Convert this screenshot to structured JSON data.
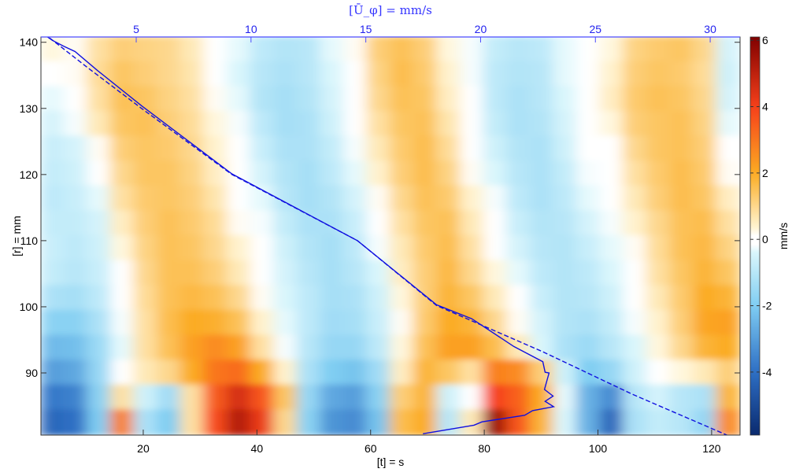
{
  "chart_data": {
    "type": "heatmap",
    "title": "",
    "xlabel": "[t] = s",
    "ylabel": "[r] = mm",
    "top_xlabel": "[Ū_φ] = mm/s",
    "colorbar_label": "mm/s",
    "xlim": [
      2,
      125
    ],
    "ylim": [
      80.6,
      140.8
    ],
    "top_xlim": [
      0.85,
      31.3
    ],
    "clim": [
      -5.9,
      6.1
    ],
    "x_ticks": [
      20,
      40,
      60,
      80,
      100,
      120
    ],
    "y_ticks": [
      90,
      100,
      110,
      120,
      130,
      140
    ],
    "top_x_ticks": [
      5,
      10,
      15,
      20,
      25,
      30
    ],
    "colorbar_ticks": [
      -4,
      -2,
      0,
      2,
      4,
      6
    ],
    "grid": false,
    "colormap": [
      {
        "v": -5.9,
        "c": "#0a2a6e"
      },
      {
        "v": -4,
        "c": "#2e6fc4"
      },
      {
        "v": -2,
        "c": "#7fcdf2"
      },
      {
        "v": -0.35,
        "c": "#dcf7fc"
      },
      {
        "v": -0.15,
        "c": "#ffffff"
      },
      {
        "v": 0.15,
        "c": "#ffffff"
      },
      {
        "v": 0.35,
        "c": "#fff4d2"
      },
      {
        "v": 2,
        "c": "#fbab22"
      },
      {
        "v": 4,
        "c": "#f6401a"
      },
      {
        "v": 6.1,
        "c": "#800000"
      }
    ],
    "grid_rows_note_r_from_top": true,
    "z": [
      [
        0.3,
        0.2,
        0.8,
        1.2,
        1.1,
        1.0,
        0.6,
        0,
        -0.3,
        -0.9,
        -1.1,
        -1.0,
        -0.3,
        0.2,
        1.2,
        1.5,
        1.2,
        0.3,
        -0.2,
        -0.8,
        -1.0,
        -0.9,
        -0.3,
        0.1,
        0.3,
        1.1,
        1.3,
        1.4,
        1.0,
        -0.5
      ],
      [
        0.1,
        0.2,
        0.9,
        1.4,
        1.2,
        1.0,
        0.7,
        0.1,
        -0.4,
        -1.0,
        -1.2,
        -1.0,
        -0.4,
        0.1,
        1.1,
        1.6,
        1.3,
        0.4,
        -0.2,
        -0.9,
        -1.1,
        -1.0,
        -0.3,
        0.1,
        0.4,
        1.2,
        1.4,
        1.3,
        0.9,
        -0.6
      ],
      [
        -0.3,
        0.0,
        0.8,
        1.5,
        1.4,
        1.1,
        0.8,
        0.2,
        -0.3,
        -1.1,
        -1.3,
        -1.1,
        -0.5,
        0.0,
        1.0,
        1.5,
        1.4,
        0.5,
        -0.1,
        -0.9,
        -1.2,
        -1.0,
        -0.4,
        0.0,
        0.5,
        1.3,
        1.5,
        1.4,
        1.0,
        -0.5
      ],
      [
        -0.5,
        -0.2,
        0.6,
        1.4,
        1.5,
        1.2,
        0.9,
        0.3,
        -0.2,
        -0.9,
        -1.3,
        -1.2,
        -0.6,
        -0.1,
        0.8,
        1.4,
        1.5,
        0.7,
        0.0,
        -0.8,
        -1.2,
        -1.1,
        -0.5,
        0.0,
        0.3,
        1.2,
        1.4,
        1.5,
        1.1,
        -0.3
      ],
      [
        -0.7,
        -0.5,
        0.2,
        1.2,
        1.4,
        1.3,
        1.0,
        0.4,
        -0.1,
        -0.7,
        -1.2,
        -1.2,
        -0.8,
        -0.2,
        0.6,
        1.3,
        1.6,
        0.9,
        0.1,
        -0.6,
        -1.1,
        -1.2,
        -0.6,
        -0.1,
        0.1,
        1.0,
        1.4,
        1.5,
        1.2,
        0.0
      ],
      [
        -0.8,
        -0.6,
        -0.1,
        1.0,
        1.4,
        1.4,
        1.1,
        0.5,
        0.0,
        -0.5,
        -1.1,
        -1.3,
        -0.9,
        -0.3,
        0.4,
        1.2,
        1.6,
        1.1,
        0.2,
        -0.4,
        -1.0,
        -1.2,
        -0.8,
        -0.2,
        0.0,
        0.8,
        1.3,
        1.6,
        1.3,
        0.2
      ],
      [
        -0.9,
        -0.7,
        -0.3,
        0.8,
        1.3,
        1.4,
        1.2,
        0.7,
        0.1,
        -0.3,
        -1.0,
        -1.3,
        -1.1,
        -0.5,
        0.2,
        1.0,
        1.5,
        1.3,
        0.4,
        -0.2,
        -0.9,
        -1.2,
        -0.9,
        -0.3,
        -0.1,
        0.6,
        1.2,
        1.6,
        1.4,
        0.5
      ],
      [
        -0.8,
        -0.8,
        -0.5,
        0.5,
        1.2,
        1.5,
        1.3,
        0.9,
        0.2,
        -0.2,
        -0.8,
        -1.2,
        -1.2,
        -0.7,
        0.0,
        0.8,
        1.4,
        1.5,
        0.6,
        0.0,
        -0.7,
        -1.1,
        -1.0,
        -0.5,
        -0.2,
        0.4,
        1.0,
        1.5,
        1.6,
        0.8
      ],
      [
        -0.7,
        -0.9,
        -0.6,
        0.3,
        1.1,
        1.5,
        1.4,
        1.0,
        0.4,
        -0.1,
        -0.6,
        -1.1,
        -1.3,
        -0.9,
        -0.2,
        0.6,
        1.3,
        1.6,
        0.8,
        0.1,
        -0.5,
        -1.0,
        -1.1,
        -0.7,
        -0.3,
        0.2,
        0.9,
        1.5,
        1.7,
        1.1
      ],
      [
        -0.8,
        -1.0,
        -0.7,
        0.1,
        1.0,
        1.5,
        1.5,
        1.2,
        0.6,
        0.0,
        -0.5,
        -1.0,
        -1.3,
        -1.0,
        -0.4,
        0.5,
        1.2,
        1.7,
        1.0,
        0.3,
        -0.3,
        -0.9,
        -1.1,
        -0.9,
        -0.4,
        0.1,
        0.8,
        1.4,
        1.8,
        1.4
      ],
      [
        -1.2,
        -1.3,
        -0.9,
        0.0,
        0.9,
        1.5,
        1.7,
        1.5,
        1.0,
        0.2,
        -0.4,
        -0.9,
        -1.3,
        -1.2,
        -0.6,
        0.3,
        1.2,
        1.8,
        1.4,
        0.6,
        -0.1,
        -0.7,
        -1.1,
        -1.0,
        -0.6,
        0.0,
        0.6,
        1.3,
        2.0,
        1.8
      ],
      [
        -1.8,
        -1.8,
        -1.2,
        -0.2,
        0.8,
        1.6,
        2.0,
        1.9,
        1.5,
        0.4,
        -0.3,
        -0.9,
        -1.4,
        -1.3,
        -0.7,
        0.2,
        1.3,
        2.0,
        1.8,
        1.0,
        0.2,
        -0.5,
        -1.1,
        -1.2,
        -0.8,
        -0.2,
        0.4,
        1.2,
        2.1,
        2.2
      ],
      [
        -2.4,
        -2.3,
        -1.5,
        -0.3,
        0.8,
        1.5,
        2.2,
        2.6,
        2.2,
        0.8,
        -0.2,
        -1.0,
        -1.6,
        -1.6,
        -0.9,
        0.3,
        1.5,
        2.2,
        2.2,
        1.6,
        0.6,
        -0.4,
        -1.2,
        -1.5,
        -1.0,
        -0.4,
        0.3,
        1.0,
        1.8,
        2.0
      ],
      [
        -3.0,
        -2.8,
        -1.6,
        0.0,
        0.6,
        1.0,
        2.0,
        3.0,
        3.2,
        2.0,
        0.4,
        -1.2,
        -2.0,
        -2.2,
        -1.4,
        0.5,
        1.8,
        1.4,
        0.8,
        2.8,
        2.6,
        1.2,
        -0.6,
        -2.0,
        -1.6,
        -0.6,
        0.0,
        0.3,
        0.6,
        1.2
      ],
      [
        -3.8,
        -3.6,
        -1.8,
        0.8,
        -0.6,
        -1.4,
        0.8,
        3.5,
        4.6,
        3.6,
        1.4,
        -1.6,
        -2.8,
        -3.0,
        -1.8,
        1.2,
        1.8,
        -0.6,
        0.0,
        4.0,
        3.4,
        2.0,
        -0.3,
        -2.6,
        -3.4,
        -1.0,
        -0.5,
        -1.0,
        -1.2,
        1.8
      ],
      [
        -4.2,
        -4.0,
        -2.0,
        2.8,
        -1.2,
        -2.0,
        0.8,
        3.8,
        5.2,
        4.2,
        1.0,
        -1.8,
        -3.2,
        -3.4,
        -2.2,
        1.6,
        2.0,
        -1.0,
        0.6,
        5.6,
        3.6,
        1.8,
        -0.4,
        -2.6,
        -4.2,
        -1.2,
        -0.8,
        -1.0,
        -1.6,
        2.6
      ]
    ],
    "series": [
      {
        "name": "dashed-trajectory",
        "style": "dashed",
        "color": "#1010e0",
        "points": [
          [
            2.5,
            141.2
          ],
          [
            3.3,
            140.8
          ],
          [
            10,
            136.3
          ],
          [
            19.7,
            130
          ],
          [
            35.6,
            120
          ],
          [
            57.7,
            110
          ],
          [
            71.6,
            100.2
          ],
          [
            90.3,
            93.2
          ],
          [
            106,
            86.8
          ],
          [
            122.7,
            80.6
          ]
        ]
      },
      {
        "name": "solid-trajectory",
        "style": "solid",
        "color": "#1010e0",
        "points": [
          [
            2.5,
            141.2
          ],
          [
            4,
            140.3
          ],
          [
            6,
            139.4
          ],
          [
            8,
            138.6
          ],
          [
            12,
            135.7
          ],
          [
            19.7,
            130.4
          ],
          [
            35.6,
            120.1
          ],
          [
            57.7,
            110
          ],
          [
            71.6,
            100.3
          ],
          [
            77.8,
            98.2
          ],
          [
            85.2,
            94
          ],
          [
            90.3,
            91.7
          ],
          [
            90.7,
            90.1
          ],
          [
            91.4,
            90
          ],
          [
            90.6,
            87.5
          ],
          [
            92.1,
            86.5
          ],
          [
            90.7,
            85.7
          ],
          [
            92.2,
            84.9
          ],
          [
            88.5,
            84.3
          ],
          [
            87.1,
            83.6
          ],
          [
            79.6,
            82.6
          ],
          [
            78.2,
            82.1
          ],
          [
            69.2,
            80.8
          ]
        ]
      }
    ]
  }
}
